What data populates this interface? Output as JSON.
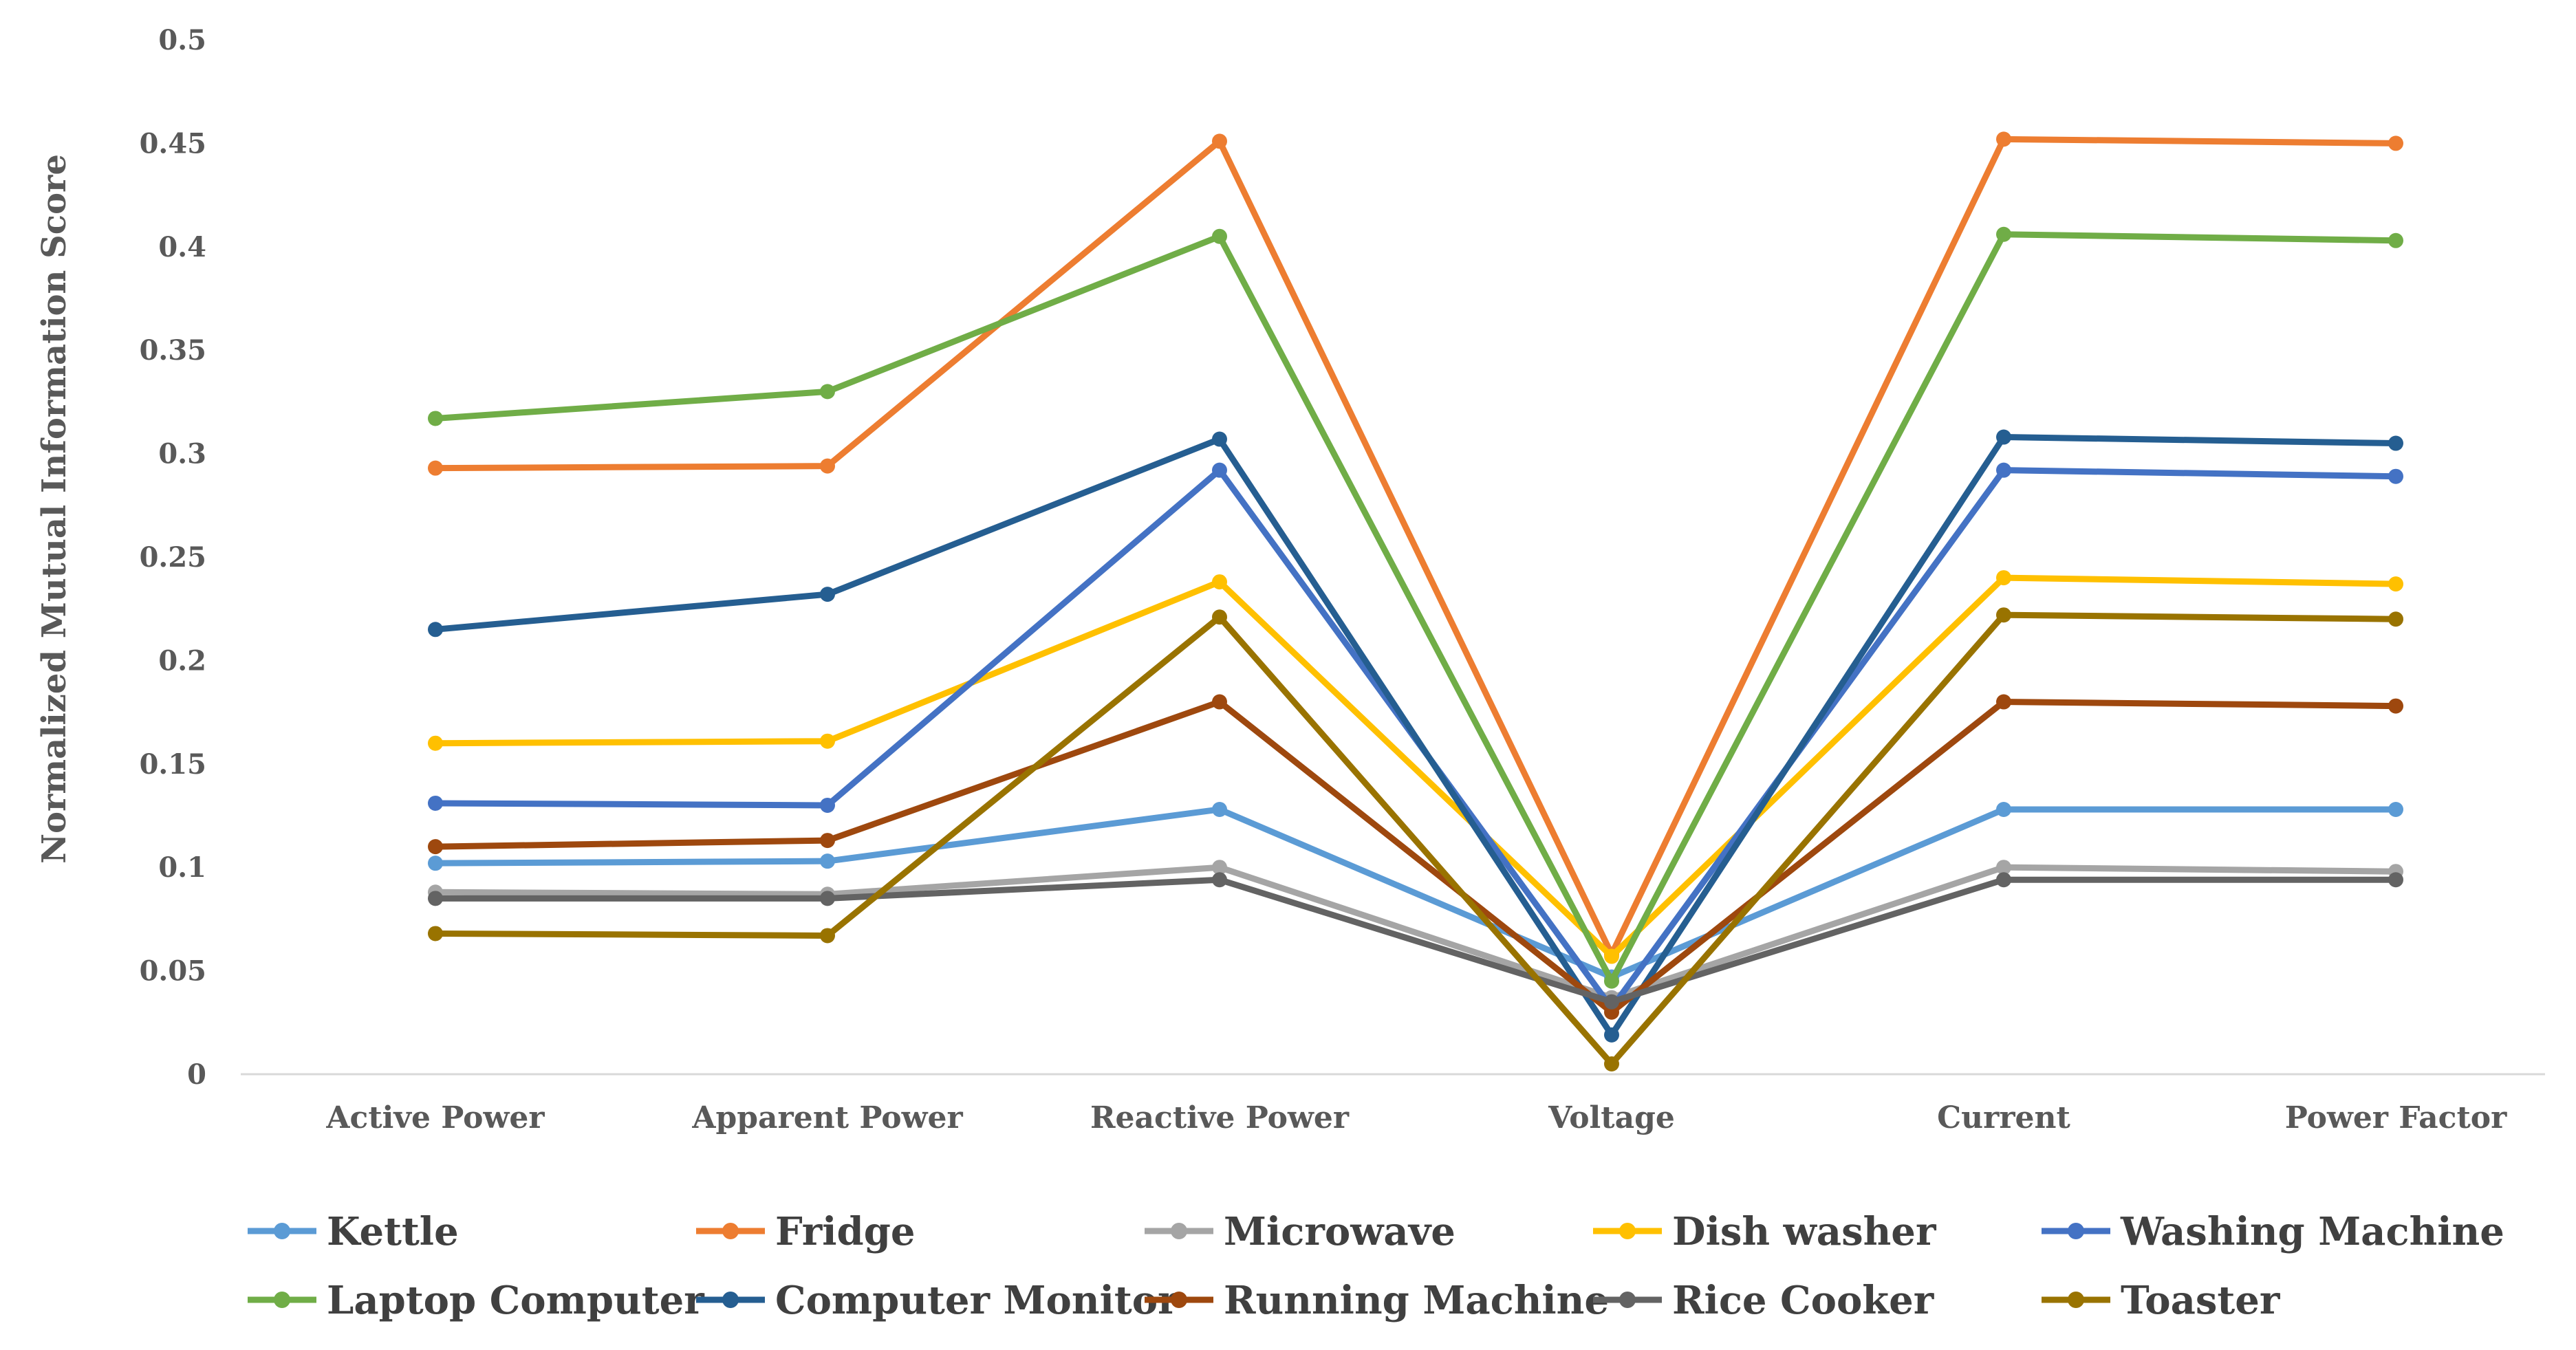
{
  "chart_data": {
    "type": "line",
    "title": "",
    "xlabel": "",
    "ylabel": "Normalized Mutual Information Score",
    "ylim": [
      0,
      0.5
    ],
    "yticks": [
      "0",
      "0.05",
      "0.1",
      "0.15",
      "0.2",
      "0.25",
      "0.3",
      "0.35",
      "0.4",
      "0.45",
      "0.5"
    ],
    "categories": [
      "Active Power",
      "Apparent Power",
      "Reactive Power",
      "Voltage",
      "Current",
      "Power Factor"
    ],
    "grid": false,
    "legend_position": "bottom",
    "series": [
      {
        "name": "Kettle",
        "color": "#5B9BD5",
        "values": [
          0.102,
          0.103,
          0.128,
          0.047,
          0.128,
          0.128
        ]
      },
      {
        "name": "Fridge",
        "color": "#ED7D31",
        "values": [
          0.293,
          0.294,
          0.451,
          0.058,
          0.452,
          0.45
        ]
      },
      {
        "name": "Microwave",
        "color": "#A5A5A5",
        "values": [
          0.088,
          0.087,
          0.1,
          0.037,
          0.1,
          0.098
        ]
      },
      {
        "name": "Dish washer",
        "color": "#FFC000",
        "values": [
          0.16,
          0.161,
          0.238,
          0.057,
          0.24,
          0.237
        ]
      },
      {
        "name": "Washing Machine",
        "color": "#4472C4",
        "values": [
          0.131,
          0.13,
          0.292,
          0.032,
          0.292,
          0.289
        ]
      },
      {
        "name": "Laptop Computer",
        "color": "#70AD47",
        "values": [
          0.317,
          0.33,
          0.405,
          0.045,
          0.406,
          0.403
        ]
      },
      {
        "name": "Computer Monitor",
        "color": "#255E91",
        "values": [
          0.215,
          0.232,
          0.307,
          0.019,
          0.308,
          0.305
        ]
      },
      {
        "name": "Running Machine",
        "color": "#9E480E",
        "values": [
          0.11,
          0.113,
          0.18,
          0.03,
          0.18,
          0.178
        ]
      },
      {
        "name": "Rice Cooker",
        "color": "#636363",
        "values": [
          0.085,
          0.085,
          0.094,
          0.035,
          0.094,
          0.094
        ]
      },
      {
        "name": "Toaster",
        "color": "#997300",
        "values": [
          0.068,
          0.067,
          0.221,
          0.005,
          0.222,
          0.22
        ]
      }
    ]
  }
}
